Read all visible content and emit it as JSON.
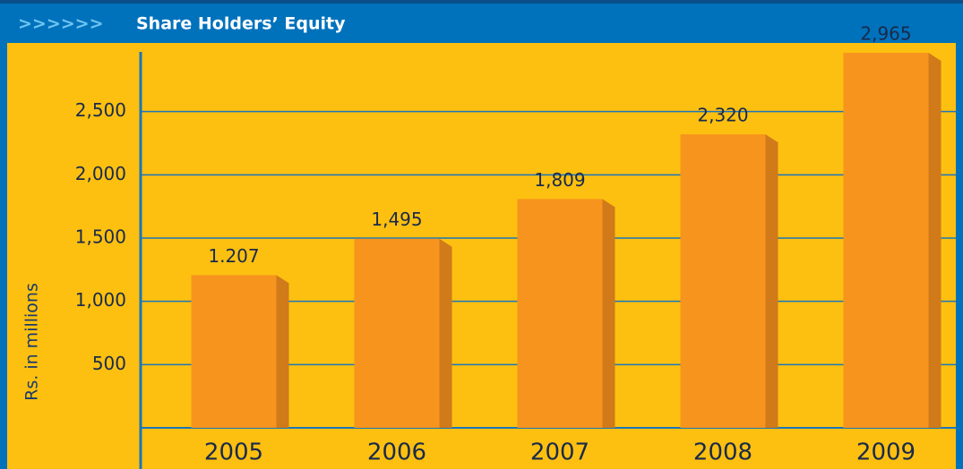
{
  "chart_data": {
    "type": "bar",
    "title_marker": ">>>>>>",
    "title": "Share Holders’ Equity",
    "y_label": "Rs. in millions",
    "categories": [
      "2005",
      "2006",
      "2007",
      "2008",
      "2009"
    ],
    "values": [
      1207,
      1495,
      1809,
      2320,
      2965
    ],
    "value_labels": [
      "1.207",
      "1,495",
      "1,809",
      "2,320",
      "2,965"
    ],
    "color": "#f7941d",
    "ylim": [
      0,
      3000
    ],
    "yticks": [
      {
        "value": 500,
        "label": "500"
      },
      {
        "value": 1000,
        "label": "1,000"
      },
      {
        "value": 1500,
        "label": "1,500"
      },
      {
        "value": 2000,
        "label": "2,000"
      },
      {
        "value": 2500,
        "label": "2,500"
      }
    ],
    "grid": true
  }
}
